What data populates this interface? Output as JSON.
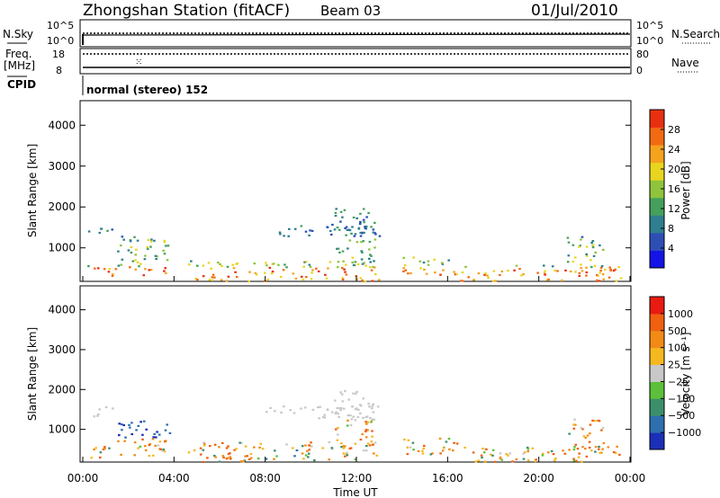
{
  "header": {
    "station": "Zhongshan Station (fitACF)",
    "beam": "Beam 03",
    "date": "01/Jul/2010"
  },
  "status_panels": {
    "nsky_label": "N.Sky",
    "nsky_ticks": [
      "10^5",
      "10^0"
    ],
    "nsearch_label": "N.Search",
    "nsearch_ticks": [
      "10^5",
      "10^0"
    ],
    "freq_label": "Freq.",
    "freq_unit": "[MHz]",
    "freq_ticks": [
      "18",
      "8"
    ],
    "nave_label": "Nave",
    "nave_ticks": [
      "80",
      "0"
    ],
    "cpid_label": "CPID",
    "cpid_value": "normal (stereo) 152"
  },
  "chart_data": [
    {
      "type": "heatmap",
      "name": "power",
      "ylabel": "Slant Range [km]",
      "xlabel": "",
      "yticks": [
        "1000",
        "2000",
        "3000",
        "4000"
      ],
      "ylim": [
        180,
        4600
      ],
      "xlim": [
        0,
        24
      ],
      "colorbar": {
        "label": "Power [dB]",
        "ticks": [
          "4",
          "8",
          "12",
          "16",
          "20",
          "24",
          "28"
        ],
        "range": [
          0,
          32
        ],
        "colors": [
          "#1414e6",
          "#2d4fb5",
          "#2f7f8f",
          "#44a05c",
          "#8fc43c",
          "#e8d520",
          "#f5a21e",
          "#f26a12",
          "#e83010"
        ]
      }
    },
    {
      "type": "heatmap",
      "name": "velocity",
      "ylabel": "Slant Range [km]",
      "xlabel": "Time UT",
      "yticks": [
        "1000",
        "2000",
        "3000",
        "4000"
      ],
      "xticks": [
        "00:00",
        "04:00",
        "08:00",
        "12:00",
        "16:00",
        "20:00",
        "00:00"
      ],
      "ylim": [
        180,
        4600
      ],
      "xlim": [
        0,
        24
      ],
      "colorbar": {
        "label": "Velocity [m s⁻¹]",
        "ticks": [
          "1000",
          "500",
          "100",
          "25",
          "−25",
          "−100",
          "−500",
          "−1000"
        ],
        "colors": [
          "#1b2fb8",
          "#2e6fb0",
          "#3b8f6a",
          "#5cc03a",
          "#c8c8c8",
          "#f5b820",
          "#f28a16",
          "#f06010",
          "#e81a12"
        ]
      }
    }
  ]
}
